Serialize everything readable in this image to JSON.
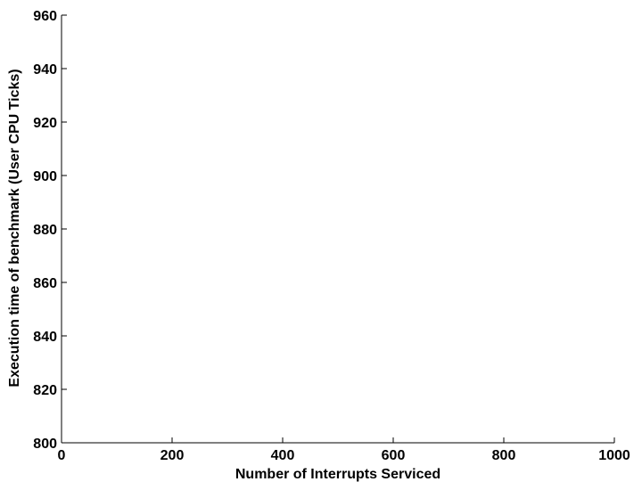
{
  "chart_data": {
    "type": "line",
    "title": "",
    "xlabel": "Number of Interrupts Serviced",
    "ylabel": "Execution time of benchmark (User CPU Ticks)",
    "xlim": [
      0,
      1000
    ],
    "ylim": [
      800,
      960
    ],
    "xticks": [
      0,
      200,
      400,
      600,
      800,
      1000
    ],
    "yticks": [
      800,
      820,
      840,
      860,
      880,
      900,
      920,
      940,
      960
    ],
    "xtick_labels": [
      "0",
      "200",
      "400",
      "600",
      "800",
      "1000"
    ],
    "ytick_labels": [
      "800",
      "820",
      "840",
      "860",
      "880",
      "900",
      "920",
      "940",
      "960"
    ],
    "series": [],
    "grid": false,
    "legend": "none"
  }
}
